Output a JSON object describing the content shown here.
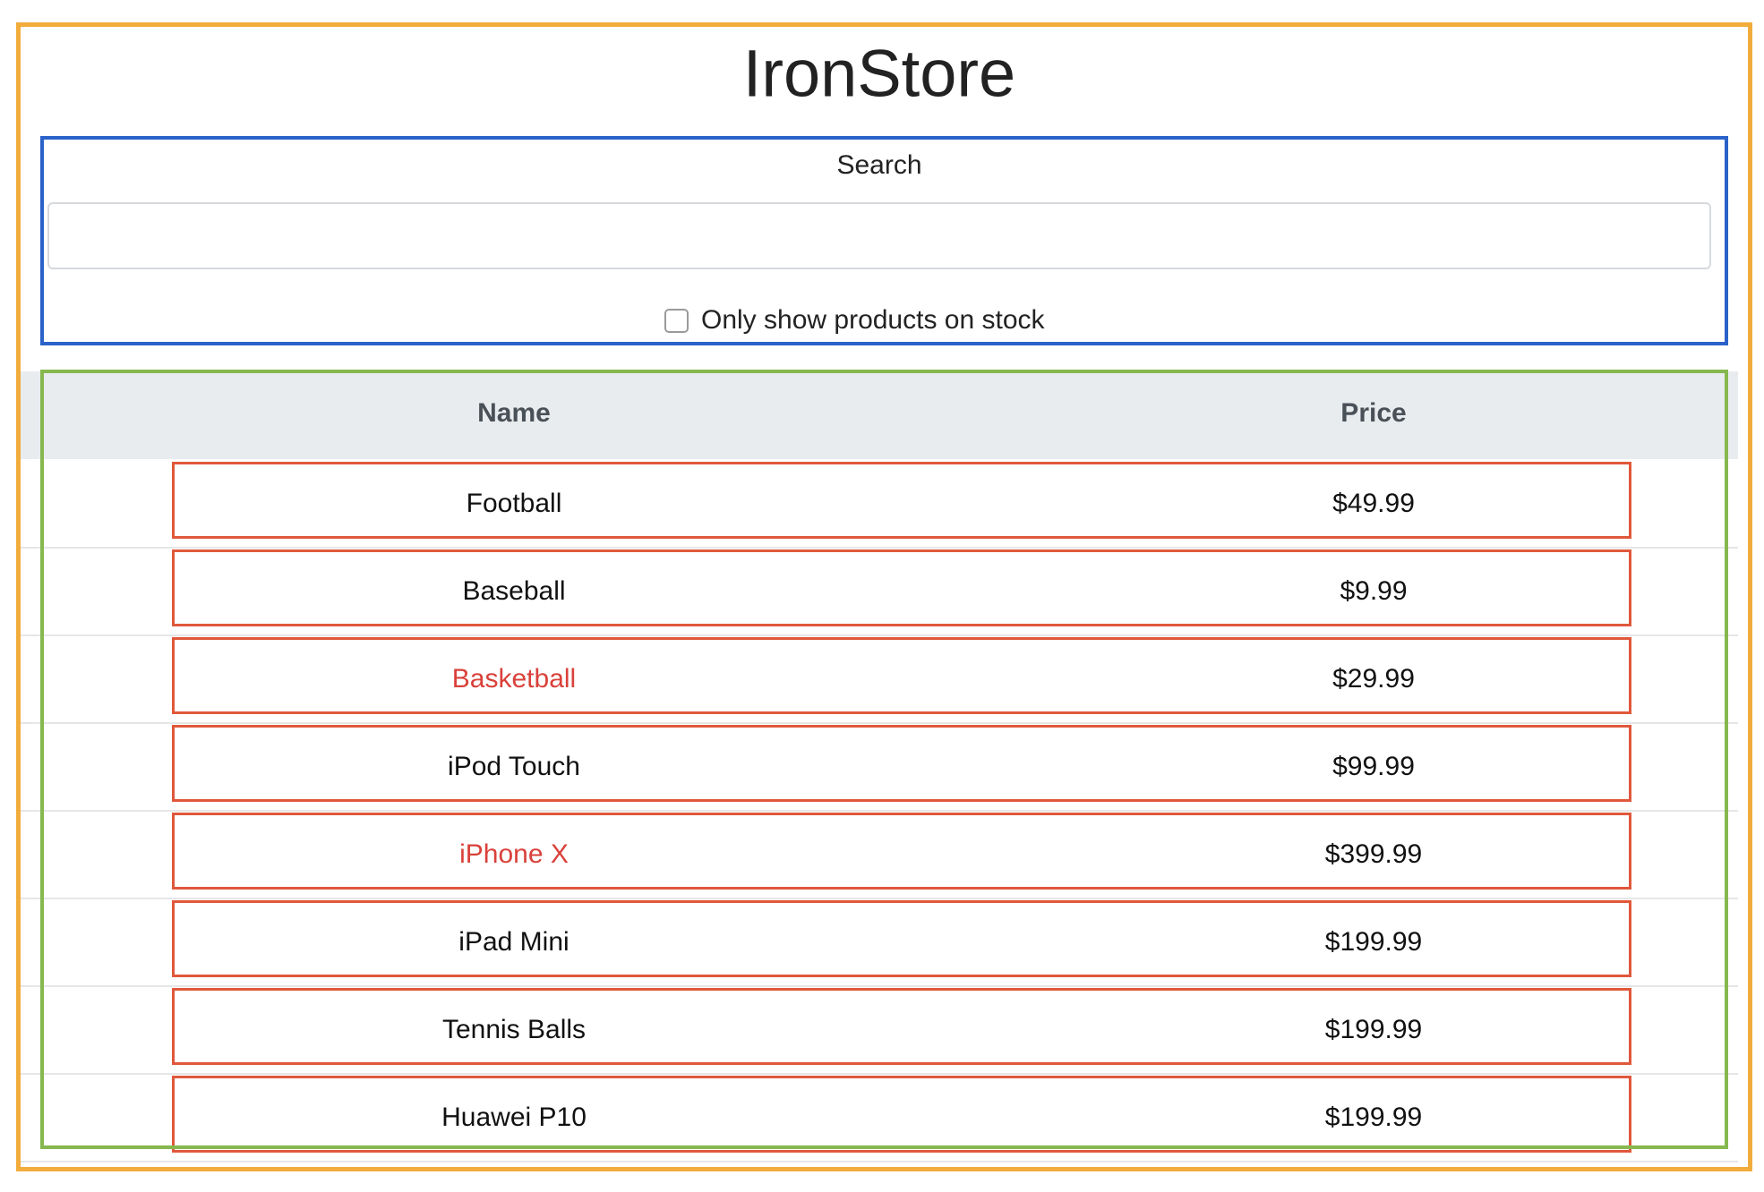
{
  "header": {
    "title": "IronStore"
  },
  "search": {
    "label": "Search",
    "checkbox_label": "Only show products on stock"
  },
  "table": {
    "columns": [
      "Name",
      "Price"
    ],
    "rows": [
      {
        "name": "Football",
        "price": "$49.99",
        "color": "#111111"
      },
      {
        "name": "Baseball",
        "price": "$9.99",
        "color": "#111111"
      },
      {
        "name": "Basketball",
        "price": "$29.99",
        "color": "#d9413a"
      },
      {
        "name": "iPod Touch",
        "price": "$99.99",
        "color": "#111111"
      },
      {
        "name": "iPhone X",
        "price": "$399.99",
        "color": "#d9413a"
      },
      {
        "name": "iPad Mini",
        "price": "$199.99",
        "color": "#111111"
      },
      {
        "name": "Tennis Balls",
        "price": "$199.99",
        "color": "#111111"
      },
      {
        "name": "Huawei P10",
        "price": "$199.99",
        "color": "#111111"
      }
    ]
  }
}
